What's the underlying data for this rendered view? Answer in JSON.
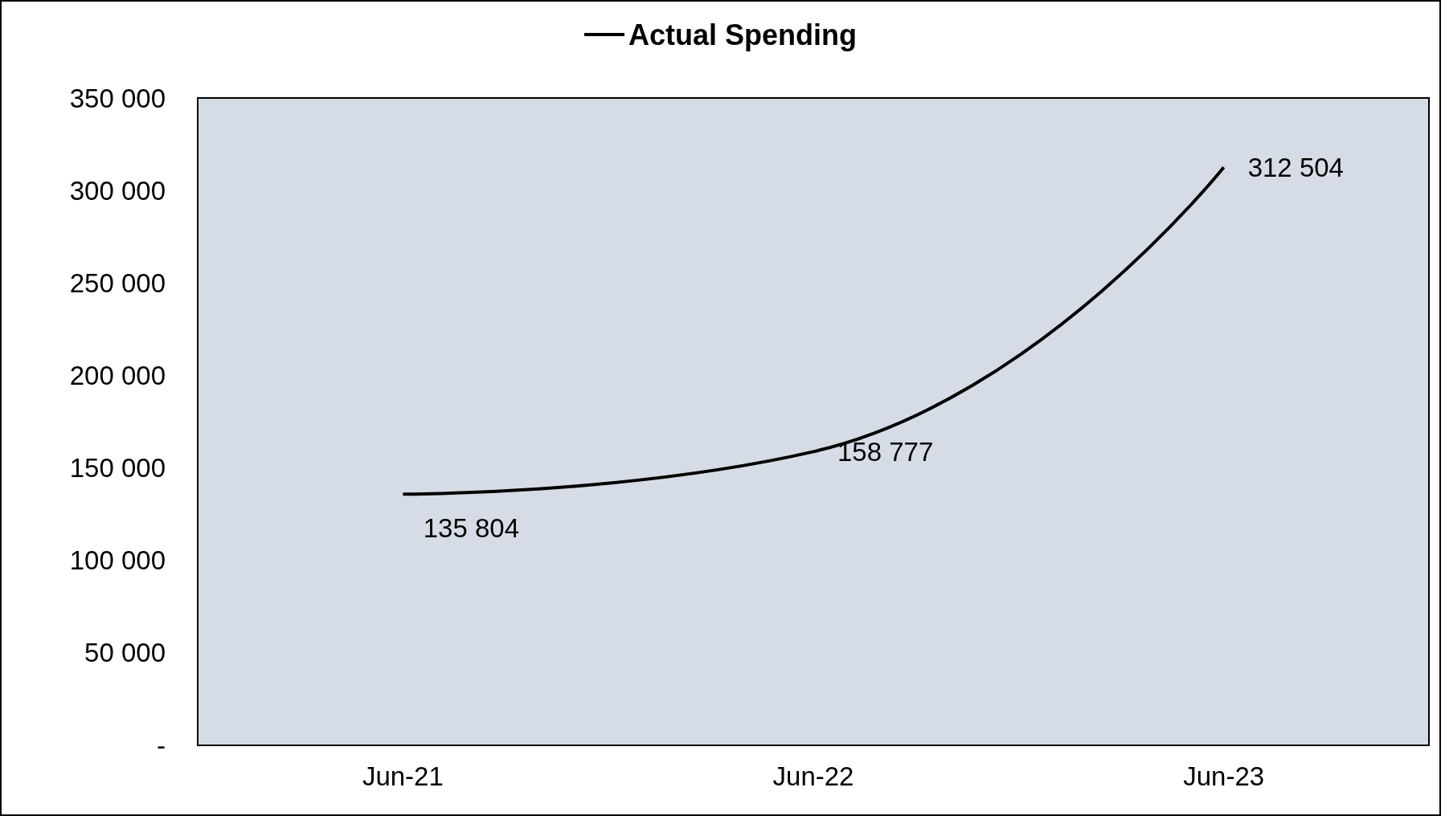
{
  "chart_data": {
    "type": "line",
    "categories": [
      "Jun-21",
      "Jun-22",
      "Jun-23"
    ],
    "series": [
      {
        "name": "Actual Spending",
        "color": "#000000",
        "values": [
          135804,
          158777,
          312504
        ]
      }
    ],
    "value_labels": [
      "135 804",
      "158 777",
      "312 504"
    ],
    "ylim": [
      0,
      350000
    ],
    "yticks": [
      {
        "value": 0,
        "label": "-"
      },
      {
        "value": 50000,
        "label": "50 000"
      },
      {
        "value": 100000,
        "label": "100 000"
      },
      {
        "value": 150000,
        "label": "150 000"
      },
      {
        "value": 200000,
        "label": "200 000"
      },
      {
        "value": 250000,
        "label": "250 000"
      },
      {
        "value": 300000,
        "label": "300 000"
      },
      {
        "value": 350000,
        "label": "350 000"
      }
    ],
    "legend": "top",
    "grid": false,
    "marker": "none",
    "line_style": "solid"
  }
}
